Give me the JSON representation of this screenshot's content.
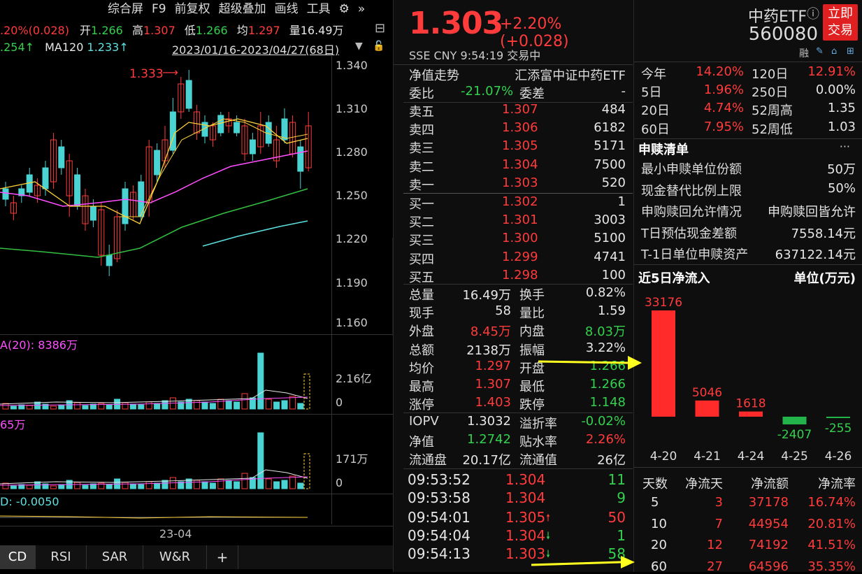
{
  "left": {
    "toolbar": [
      "综合屏",
      "F9",
      "前复权",
      "超级叠加",
      "画线",
      "工具"
    ],
    "quote_row": {
      "chg": ".20%(0.028)",
      "open_lbl": "开",
      "open": "1.266",
      "high_lbl": "高",
      "high": "1.307",
      "low_lbl": "低",
      "low": "1.266",
      "avg_lbl": "均",
      "avg": "1.297",
      "vol_lbl": "量",
      "vol": "16.49万"
    },
    "ma_row": {
      "ma_a": ".254↑",
      "ma120_lbl": "MA120",
      "ma120": "1.233↑",
      "range": "2023/01/16-2023/04/27(68日)"
    },
    "peak_label": "1.333",
    "price_axis": [
      "1.340",
      "1.310",
      "1.280",
      "1.250",
      "1.220",
      "1.190",
      "1.160"
    ],
    "vol_label": "A(20): 8386万",
    "vol_axis": [
      "2.16亿",
      "0"
    ],
    "amt_label": "65万",
    "amt_axis": [
      "171万",
      "0"
    ],
    "macd_label": "D: -0.0050",
    "date_label": "23-04",
    "tabs": [
      "CD",
      "RSI",
      "SAR",
      "W&R",
      "+"
    ]
  },
  "mid": {
    "price": "1.303",
    "change": "+2.20% (+0.028)",
    "sub": "SSE  CNY  9:54:19  交易中",
    "nav_title": "净值走势",
    "fund_name": "汇添富中证中药ETF",
    "weibi_lbl": "委比",
    "weibi": "-21.07%",
    "weicha_lbl": "委差",
    "weicha": "-",
    "asks": [
      {
        "lbl": "卖五",
        "price": "1.307",
        "vol": "484"
      },
      {
        "lbl": "卖四",
        "price": "1.306",
        "vol": "6182"
      },
      {
        "lbl": "卖三",
        "price": "1.305",
        "vol": "5171"
      },
      {
        "lbl": "卖二",
        "price": "1.304",
        "vol": "7500"
      },
      {
        "lbl": "卖一",
        "price": "1.303",
        "vol": "520"
      }
    ],
    "bids": [
      {
        "lbl": "买一",
        "price": "1.302",
        "vol": "1"
      },
      {
        "lbl": "买二",
        "price": "1.301",
        "vol": "3003"
      },
      {
        "lbl": "买三",
        "price": "1.300",
        "vol": "5100"
      },
      {
        "lbl": "买四",
        "price": "1.299",
        "vol": "4741"
      },
      {
        "lbl": "买五",
        "price": "1.298",
        "vol": "100"
      }
    ],
    "stats": [
      {
        "l1": "总量",
        "v1": "16.49万",
        "c1": "white",
        "l2": "换手",
        "v2": "0.82%",
        "c2": "white"
      },
      {
        "l1": "现手",
        "v1": "58",
        "c1": "white",
        "l2": "量比",
        "v2": "1.59",
        "c2": "white"
      },
      {
        "l1": "外盘",
        "v1": "8.45万",
        "c1": "red",
        "l2": "内盘",
        "v2": "8.03万",
        "c2": "green"
      },
      {
        "l1": "总额",
        "v1": "2138万",
        "c1": "white",
        "l2": "振幅",
        "v2": "3.22%",
        "c2": "white"
      },
      {
        "l1": "均价",
        "v1": "1.297",
        "c1": "red",
        "l2": "开盘",
        "v2": "1.266",
        "c2": "green"
      },
      {
        "l1": "最高",
        "v1": "1.307",
        "c1": "red",
        "l2": "最低",
        "v2": "1.266",
        "c2": "green"
      },
      {
        "l1": "涨停",
        "v1": "1.403",
        "c1": "red",
        "l2": "跌停",
        "v2": "1.148",
        "c2": "green"
      }
    ],
    "stats2": [
      {
        "l1": "IOPV",
        "v1": "1.3032",
        "c1": "white",
        "l2": "溢折率",
        "v2": "-0.02%",
        "c2": "green"
      },
      {
        "l1": "净值",
        "v1": "1.2742",
        "c1": "green",
        "l2": "贴水率",
        "v2": "2.26%",
        "c2": "red"
      },
      {
        "l1": "流通盘",
        "v1": "20.17亿",
        "c1": "white",
        "l2": "流通值",
        "v2": "26亿",
        "c2": "white"
      }
    ],
    "ticks": [
      {
        "t": "09:53:52",
        "p": "1.304",
        "arrow": "",
        "v": "11",
        "vc": "green"
      },
      {
        "t": "09:53:58",
        "p": "1.304",
        "arrow": "",
        "v": "9",
        "vc": "green"
      },
      {
        "t": "09:54:01",
        "p": "1.305",
        "arrow": "up",
        "v": "50",
        "vc": "red"
      },
      {
        "t": "09:54:04",
        "p": "1.304",
        "arrow": "down",
        "v": "1",
        "vc": "green"
      },
      {
        "t": "09:54:13",
        "p": "1.303",
        "arrow": "down",
        "v": "58",
        "vc": "green"
      }
    ]
  },
  "right": {
    "name": "中药ETF",
    "code": "560080",
    "trade_btn": "立即\n交易",
    "rong": "融",
    "perf": [
      {
        "l1": "今年",
        "v1": "14.20%",
        "c1": "red",
        "l2": "120日",
        "v2": "12.91%",
        "c2": "red"
      },
      {
        "l1": "5日",
        "v1": "1.96%",
        "c1": "red",
        "l2": "250日",
        "v2": "0.00%",
        "c2": "white"
      },
      {
        "l1": "20日",
        "v1": "4.74%",
        "c1": "red",
        "l2": "52周高",
        "v2": "1.35",
        "c2": "white"
      },
      {
        "l1": "60日",
        "v1": "7.95%",
        "c1": "red",
        "l2": "52周低",
        "v2": "1.03",
        "c2": "white"
      }
    ],
    "sg_title": "申赎清单",
    "sg_more": "···",
    "sg": [
      {
        "k": "最小申赎单位份额",
        "v": "50万"
      },
      {
        "k": "现金替代比例上限",
        "v": "50%"
      },
      {
        "k": "申购赎回允许情况",
        "v": "申购赎回皆允许"
      },
      {
        "k": "T日预估现金差额",
        "v": "7558.14元"
      },
      {
        "k": "T-1日单位申赎资产",
        "v": "637122.14元"
      }
    ],
    "flow_title": "近5日净流入",
    "flow_unit": "单位(万元)",
    "table_head": [
      "天数",
      "净流天",
      "净流额",
      "净流率"
    ],
    "table": [
      {
        "d": "5",
        "n": "3",
        "a": "37178",
        "r": "16.74%"
      },
      {
        "d": "10",
        "n": "7",
        "a": "44954",
        "r": "20.81%"
      },
      {
        "d": "20",
        "n": "12",
        "a": "74192",
        "r": "41.51%"
      },
      {
        "d": "60",
        "n": "27",
        "a": "64596",
        "r": "35.35%"
      }
    ]
  },
  "chart_data": {
    "type": "bar",
    "title": "近5日净流入",
    "ylabel": "单位(万元)",
    "categories": [
      "4-20",
      "4-21",
      "4-24",
      "4-25",
      "4-26"
    ],
    "values": [
      33176,
      5046,
      1618,
      -2407,
      -255
    ],
    "labels": [
      "33176",
      "5046",
      "1618",
      "-2407",
      "-255"
    ],
    "colors": {
      "pos": "#ff2a2a",
      "neg": "#22b34a"
    }
  }
}
